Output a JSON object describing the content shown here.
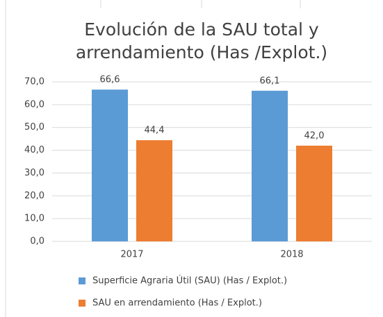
{
  "chart_data": {
    "type": "bar",
    "title": "Evolución de la SAU total y arrendamiento (Has /Explot.)",
    "categories": [
      "2017",
      "2018"
    ],
    "series": [
      {
        "name": "Superficie Agraria Útil (SAU) (Has / Explot.)",
        "color": "#5b9bd5",
        "values": [
          66.6,
          66.1
        ],
        "value_labels": [
          "66,6",
          "66,1"
        ]
      },
      {
        "name": "SAU en arrendamiento (Has / Explot.)",
        "color": "#ed7d31",
        "values": [
          44.4,
          42.0
        ],
        "value_labels": [
          "44,4",
          "42,0"
        ]
      }
    ],
    "ylim": [
      0,
      70
    ],
    "yticks": [
      {
        "value": 0,
        "label": "0,0"
      },
      {
        "value": 10,
        "label": "10,0"
      },
      {
        "value": 20,
        "label": "20,0"
      },
      {
        "value": 30,
        "label": "30,0"
      },
      {
        "value": 40,
        "label": "40,0"
      },
      {
        "value": 50,
        "label": "50,0"
      },
      {
        "value": 60,
        "label": "60,0"
      },
      {
        "value": 70,
        "label": "70,0"
      }
    ],
    "grid": true,
    "legend": "bottom"
  }
}
